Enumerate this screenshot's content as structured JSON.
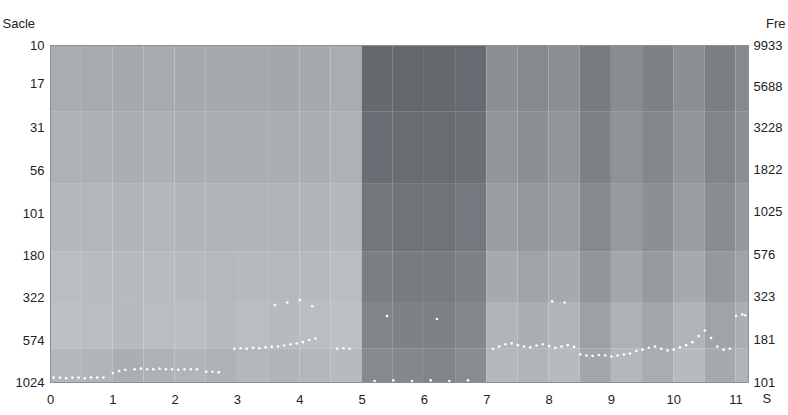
{
  "chart_data": {
    "type": "heatmap",
    "xlabel": "S",
    "ylabel": "Sacle",
    "y2label": "Fre",
    "xlim": [
      0,
      11.2
    ],
    "xticks": [
      0,
      1,
      2,
      3,
      4,
      5,
      6,
      7,
      8,
      9,
      10,
      11
    ],
    "log": "y",
    "ylim": [
      1024,
      10
    ],
    "yticks": [
      10,
      17,
      31,
      56,
      101,
      180,
      322,
      574,
      1024
    ],
    "y2lim": [
      101,
      9933
    ],
    "y2ticks": [
      101,
      181,
      323,
      576,
      1025,
      1822,
      3228,
      5688,
      9933
    ],
    "clim": [
      0,
      100
    ],
    "cells": {
      "axis": "y2",
      "x": [
        0,
        0.5,
        1,
        1.5,
        2,
        2.5,
        3,
        3.5,
        4,
        4.5,
        5,
        5.5,
        6,
        6.5,
        7,
        7.5,
        8,
        8.5,
        9,
        9.5,
        10,
        10.5,
        11,
        11.2
      ],
      "y": [
        101,
        160,
        300,
        600,
        1500,
        4000,
        9933
      ],
      "values": [
        [
          72,
          70,
          66,
          68,
          70,
          68,
          72,
          70,
          72,
          74,
          40,
          38,
          36,
          42,
          72,
          70,
          74,
          60,
          72,
          64,
          74,
          62,
          70
        ],
        [
          78,
          76,
          74,
          76,
          76,
          74,
          76,
          74,
          76,
          78,
          36,
          34,
          33,
          38,
          70,
          66,
          70,
          56,
          68,
          60,
          70,
          58,
          66
        ],
        [
          76,
          75,
          74,
          75,
          74,
          73,
          74,
          73,
          74,
          76,
          32,
          30,
          30,
          34,
          62,
          58,
          62,
          48,
          60,
          52,
          62,
          50,
          58
        ],
        [
          72,
          71,
          70,
          71,
          70,
          70,
          70,
          69,
          70,
          72,
          26,
          24,
          24,
          28,
          54,
          50,
          54,
          40,
          52,
          44,
          54,
          42,
          50
        ],
        [
          68,
          67,
          66,
          67,
          66,
          66,
          66,
          65,
          66,
          68,
          20,
          19,
          19,
          22,
          48,
          44,
          48,
          34,
          46,
          38,
          48,
          36,
          44
        ],
        [
          64,
          63,
          62,
          63,
          62,
          62,
          62,
          61,
          62,
          64,
          17,
          16,
          16,
          18,
          44,
          40,
          44,
          30,
          42,
          34,
          44,
          32,
          40
        ]
      ]
    },
    "series": [
      {
        "type": "scatter",
        "axis": "y2",
        "color": "#ffffff",
        "marker": "dot",
        "x": [
          0.05,
          0.15,
          0.25,
          0.35,
          0.45,
          0.55,
          0.65,
          0.75,
          0.85,
          1.0,
          1.1,
          1.2,
          1.35,
          1.45,
          1.55,
          1.65,
          1.75,
          1.85,
          1.95,
          2.05,
          2.15,
          2.25,
          2.35,
          2.5,
          2.6,
          2.7,
          2.95,
          3.05,
          3.15,
          3.25,
          3.35,
          3.45,
          3.55,
          3.65,
          3.75,
          3.85,
          3.95,
          4.05,
          4.15,
          4.25,
          4.6,
          4.7,
          4.8,
          3.6,
          3.8,
          4.0,
          4.2,
          5.2,
          5.5,
          5.8,
          6.1,
          6.4,
          6.7,
          5.4,
          6.2,
          7.1,
          7.2,
          7.3,
          7.4,
          7.5,
          7.6,
          7.7,
          7.8,
          7.9,
          8.0,
          8.1,
          8.2,
          8.3,
          8.4,
          8.05,
          8.25,
          8.5,
          8.6,
          8.7,
          8.8,
          8.9,
          9.0,
          9.1,
          9.2,
          9.3,
          9.4,
          9.5,
          9.6,
          9.7,
          9.8,
          9.9,
          10.0,
          10.1,
          10.2,
          10.3,
          10.4,
          10.5,
          10.6,
          10.7,
          10.8,
          10.9,
          11.0,
          11.1,
          11.15
        ],
        "values": [
          108,
          108,
          107,
          108,
          108,
          107,
          108,
          108,
          108,
          115,
          118,
          120,
          121,
          122,
          121,
          121,
          122,
          121,
          121,
          120,
          121,
          121,
          121,
          117,
          117,
          116,
          160,
          161,
          160,
          162,
          161,
          163,
          164,
          165,
          167,
          170,
          172,
          175,
          180,
          184,
          160,
          161,
          160,
          290,
          300,
          310,
          285,
          103,
          104,
          103,
          104,
          103,
          104,
          250,
          240,
          160,
          165,
          170,
          172,
          168,
          165,
          163,
          167,
          170,
          166,
          162,
          165,
          168,
          164,
          305,
          300,
          148,
          146,
          145,
          147,
          146,
          144,
          146,
          148,
          150,
          155,
          158,
          162,
          165,
          160,
          156,
          158,
          163,
          168,
          175,
          190,
          205,
          185,
          165,
          158,
          160,
          250,
          255,
          252
        ]
      }
    ]
  }
}
